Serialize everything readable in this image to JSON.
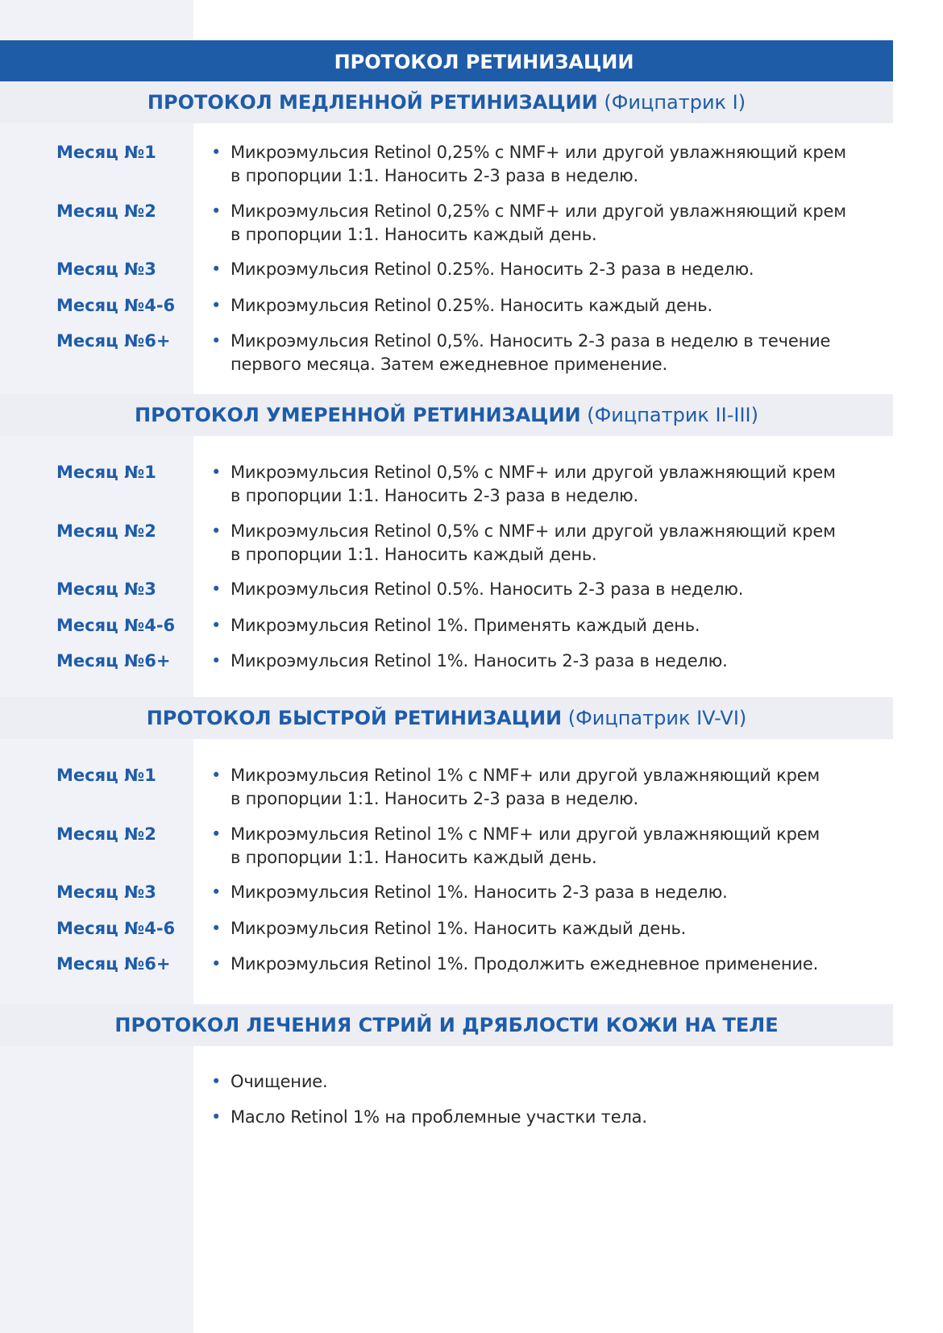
{
  "title": "ПРОТОКОЛ РЕТИНИЗАЦИИ",
  "sections": [
    {
      "heading": "ПРОТОКОЛ МЕДЛЕННОЙ РЕТИНИЗАЦИИ",
      "sub": "(Фицпатрик I)",
      "rows": [
        {
          "label": "Месяц №1",
          "lines": [
            "Микроэмульсия Retinol 0,25% с NMF+ или другой увлажняющий крем",
            "в пропорции 1:1. Наносить 2-3 раза в неделю."
          ]
        },
        {
          "label": "Месяц №2",
          "lines": [
            "Микроэмульсия Retinol 0,25% с NMF+ или другой увлажняющий крем",
            "в пропорции 1:1. Наносить каждый день."
          ]
        },
        {
          "label": "Месяц №3",
          "lines": [
            "Микроэмульсия Retinol 0.25%. Наносить 2-3 раза в неделю."
          ]
        },
        {
          "label": "Месяц №4-6",
          "lines": [
            "Микроэмульсия Retinol 0.25%. Наносить каждый день."
          ]
        },
        {
          "label": "Месяц №6+",
          "lines": [
            "Микроэмульсия Retinol 0,5%. Наносить 2-3 раза в неделю в течение",
            "первого месяца. Затем ежедневное применение."
          ]
        }
      ]
    },
    {
      "heading": "ПРОТОКОЛ УМЕРЕННОЙ РЕТИНИЗАЦИИ",
      "sub": "(Фицпатрик II-III)",
      "rows": [
        {
          "label": "Месяц №1",
          "lines": [
            "Микроэмульсия Retinol 0,5% с NMF+ или другой увлажняющий крем",
            "в пропорции 1:1. Наносить 2-3 раза в неделю."
          ]
        },
        {
          "label": "Месяц №2",
          "lines": [
            "Микроэмульсия Retinol 0,5% с NMF+ или другой увлажняющий крем",
            "в пропорции 1:1. Наносить каждый день."
          ]
        },
        {
          "label": "Месяц №3",
          "lines": [
            "Микроэмульсия Retinol 0.5%. Наносить 2-3 раза в неделю."
          ]
        },
        {
          "label": "Месяц №4-6",
          "lines": [
            "Микроэмульсия Retinol 1%. Применять каждый день."
          ]
        },
        {
          "label": "Месяц №6+",
          "lines": [
            "Микроэмульсия Retinol 1%. Наносить 2-3 раза в неделю."
          ]
        }
      ]
    },
    {
      "heading": "ПРОТОКОЛ БЫСТРОЙ РЕТИНИЗАЦИИ",
      "sub": "(Фицпатрик IV-VI)",
      "rows": [
        {
          "label": "Месяц №1",
          "lines": [
            "Микроэмульсия Retinol 1% с NMF+ или другой увлажняющий крем",
            "в пропорции 1:1. Наносить 2-3 раза в неделю."
          ]
        },
        {
          "label": "Месяц №2",
          "lines": [
            "Микроэмульсия Retinol 1% с NMF+ или другой увлажняющий крем",
            "в пропорции 1:1. Наносить каждый день."
          ]
        },
        {
          "label": "Месяц №3",
          "lines": [
            "Микроэмульсия Retinol 1%. Наносить 2-3 раза в неделю."
          ]
        },
        {
          "label": "Месяц №4-6",
          "lines": [
            "Микроэмульсия Retinol 1%. Наносить каждый день."
          ]
        },
        {
          "label": "Месяц №6+",
          "lines": [
            "Микроэмульсия Retinol 1%. Продолжить ежедневное применение."
          ]
        }
      ]
    },
    {
      "heading": "ПРОТОКОЛ ЛЕЧЕНИЯ СТРИЙ И ДРЯБЛОСТИ КОЖИ НА ТЕЛЕ",
      "sub": "",
      "rows": [
        {
          "label": "",
          "lines": [
            "Очищение."
          ]
        },
        {
          "label": "",
          "lines": [
            "Масло Retinol 1% на проблемные участки тела."
          ]
        }
      ]
    }
  ],
  "colors": {
    "accent": "#1f5ca8",
    "band": "#eceef4",
    "left_column": "#f0f2f8"
  }
}
